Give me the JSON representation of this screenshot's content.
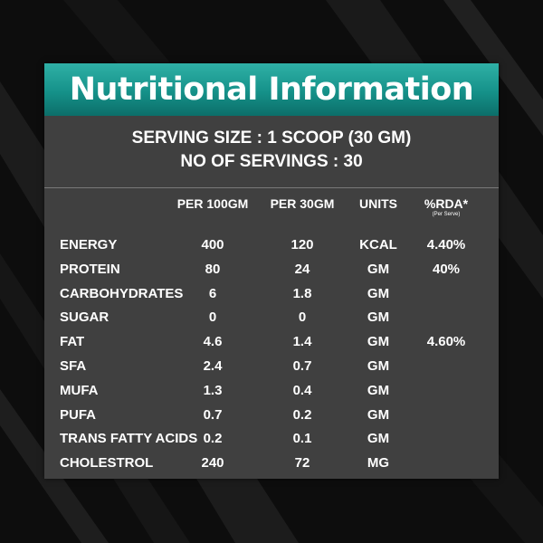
{
  "title": "Nutritional Information",
  "serving_size": "SERVING SIZE : 1 SCOOP (30 GM)",
  "servings": "NO OF SERVINGS : 30",
  "columns": {
    "per100": "PER 100GM",
    "per30": "PER 30GM",
    "units": "UNITS",
    "rda": "%RDA*",
    "rda_note": "(Per Serve)"
  },
  "rows": [
    {
      "name": "ENERGY",
      "per100": "400",
      "per30": "120",
      "unit": "KCAL",
      "rda": "4.40%"
    },
    {
      "name": "PROTEIN",
      "per100": "80",
      "per30": "24",
      "unit": "GM",
      "rda": "40%"
    },
    {
      "name": "CARBOHYDRATES",
      "per100": "6",
      "per30": "1.8",
      "unit": "GM",
      "rda": ""
    },
    {
      "name": "SUGAR",
      "per100": "0",
      "per30": "0",
      "unit": "GM",
      "rda": ""
    },
    {
      "name": "FAT",
      "per100": "4.6",
      "per30": "1.4",
      "unit": "GM",
      "rda": "4.60%"
    },
    {
      "name": "SFA",
      "per100": "2.4",
      "per30": "0.7",
      "unit": "GM",
      "rda": ""
    },
    {
      "name": "MUFA",
      "per100": "1.3",
      "per30": "0.4",
      "unit": "GM",
      "rda": ""
    },
    {
      "name": "PUFA",
      "per100": "0.7",
      "per30": "0.2",
      "unit": "GM",
      "rda": ""
    },
    {
      "name": "TRANS FATTY ACIDS",
      "per100": "0.2",
      "per30": "0.1",
      "unit": "GM",
      "rda": ""
    },
    {
      "name": "CHOLESTROL",
      "per100": "240",
      "per30": "72",
      "unit": "MG",
      "rda": ""
    }
  ],
  "colors": {
    "header_top": "#2fb0a6",
    "header_bottom": "#0c6e69",
    "panel": "#404040",
    "background": "#0d0d0d",
    "text": "#ffffff"
  }
}
